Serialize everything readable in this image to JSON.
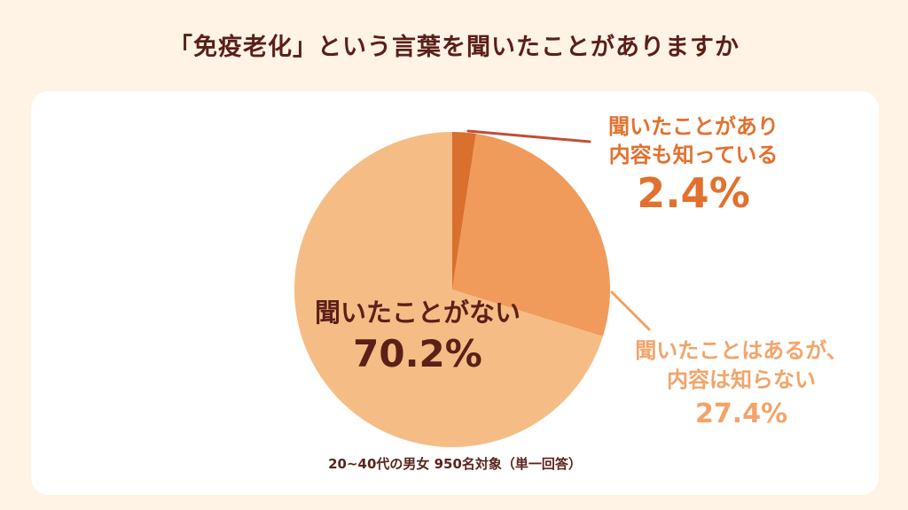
{
  "page": {
    "title": "「免疫老化」という言葉を聞いたことがありますか",
    "footnote": "20~40代の男女 950名対象（単一回答）",
    "background_color": "#FFF3E6",
    "card_color": "#FFFFFF",
    "title_color": "#5A1F18"
  },
  "chart_data": {
    "type": "pie",
    "title": "「免疫老化」という言葉を聞いたことがありますか",
    "footnote": "20~40代の男女 950名対象（単一回答）",
    "start_angle_deg": 0,
    "direction": "clockwise",
    "legend_position": "none",
    "slices": [
      {
        "label": "聞いたことがあり内容も知っている",
        "value": 2.4,
        "color": "#D9702E"
      },
      {
        "label": "聞いたことはあるが、内容は知らない",
        "value": 27.4,
        "color": "#F09B5B"
      },
      {
        "label": "聞いたことがない",
        "value": 70.2,
        "color": "#F5BD85"
      }
    ],
    "callouts": [
      {
        "for": "聞いたことがあり内容も知っている",
        "color": "#C14F33"
      },
      {
        "for": "聞いたことはあるが、内容は知らない",
        "color": "#F0A05F"
      }
    ]
  },
  "labels": {
    "know": {
      "line1": "聞いたことがあり",
      "line2": "内容も知っている",
      "value": "2.4%",
      "color": "#E2712E"
    },
    "heard": {
      "line1": "聞いたことはあるが、",
      "line2": "内容は知らない",
      "value": "27.4%",
      "color": "#F2A469"
    },
    "never": {
      "line1": "聞いたことがない",
      "value": "70.2%",
      "color": "#5B2018"
    }
  }
}
